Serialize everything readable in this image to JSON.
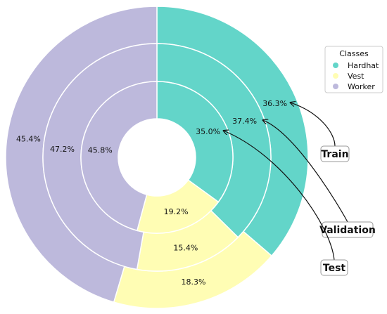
{
  "chart_data": {
    "type": "pie",
    "variant": "nested-donut",
    "categories": [
      "Hardhat",
      "Vest",
      "Worker"
    ],
    "colors": {
      "Hardhat": "#63d5c9",
      "Vest": "#fffdb4",
      "Worker": "#bdb9dc"
    },
    "series": [
      {
        "name": "Train",
        "values": [
          36.3,
          18.3,
          45.4
        ]
      },
      {
        "name": "Validation",
        "values": [
          37.4,
          15.4,
          47.2
        ]
      },
      {
        "name": "Test",
        "values": [
          35.0,
          19.2,
          45.8
        ]
      }
    ],
    "labels": {
      "Train": [
        "36.3%",
        "18.3%",
        "45.4%"
      ],
      "Validation": [
        "37.4%",
        "15.4%",
        "47.2%"
      ],
      "Test": [
        "35.0%",
        "19.2%",
        "45.8%"
      ]
    },
    "legend": {
      "title": "Classes",
      "placement": "right",
      "entries": [
        "Hardhat",
        "Vest",
        "Worker"
      ]
    },
    "title": ""
  }
}
